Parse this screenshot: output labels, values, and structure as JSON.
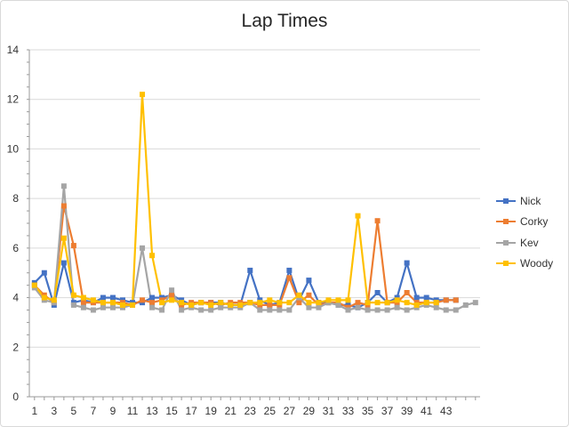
{
  "chart_data": {
    "type": "line",
    "title": "Lap Times",
    "xlabel": "",
    "ylabel": "",
    "ylim": [
      0,
      14
    ],
    "y_ticks": [
      0,
      2,
      4,
      6,
      8,
      10,
      12,
      14
    ],
    "x_range": [
      1,
      46
    ],
    "x_tick_labels": [
      1,
      3,
      5,
      7,
      9,
      11,
      13,
      15,
      17,
      19,
      21,
      23,
      25,
      27,
      29,
      31,
      33,
      35,
      37,
      39,
      41,
      43
    ],
    "grid": "horizontal",
    "legend_position": "right",
    "series": [
      {
        "name": "Nick",
        "color": "#4472C4",
        "x": [
          1,
          2,
          3,
          4,
          5,
          6,
          7,
          8,
          9,
          10,
          11,
          12,
          13,
          14,
          15,
          16,
          17,
          18,
          19,
          20,
          21,
          22,
          23,
          24,
          25,
          26,
          27,
          28,
          29,
          30,
          31,
          32,
          33,
          34,
          35,
          36,
          37,
          38,
          39,
          40,
          41,
          42,
          43,
          44
        ],
        "values": [
          4.6,
          5.0,
          3.7,
          5.4,
          3.8,
          3.9,
          3.8,
          4.0,
          4.0,
          3.9,
          3.8,
          3.8,
          4.0,
          4.0,
          4.1,
          3.9,
          3.7,
          3.8,
          3.8,
          3.8,
          3.7,
          3.7,
          5.1,
          3.9,
          3.7,
          3.8,
          5.1,
          3.9,
          4.7,
          3.8,
          3.8,
          3.7,
          3.7,
          3.6,
          3.8,
          4.2,
          3.8,
          4.0,
          5.4,
          4.0,
          4.0,
          3.9,
          3.9,
          3.9
        ]
      },
      {
        "name": "Corky",
        "color": "#ED7D31",
        "x": [
          1,
          2,
          3,
          4,
          5,
          6,
          7,
          8,
          9,
          10,
          11,
          12,
          13,
          14,
          15,
          16,
          17,
          18,
          19,
          20,
          21,
          22,
          23,
          24,
          25,
          26,
          27,
          28,
          29,
          30,
          31,
          32,
          33,
          34,
          35,
          36,
          37,
          38,
          39,
          40,
          41,
          42,
          43,
          44
        ],
        "values": [
          4.5,
          4.1,
          3.8,
          7.7,
          6.1,
          3.8,
          3.8,
          3.8,
          3.8,
          3.8,
          3.7,
          3.9,
          3.8,
          3.9,
          4.1,
          3.7,
          3.8,
          3.8,
          3.8,
          3.7,
          3.8,
          3.8,
          3.8,
          3.7,
          3.7,
          3.7,
          4.8,
          3.8,
          4.1,
          3.7,
          3.8,
          3.8,
          3.6,
          3.8,
          3.7,
          7.1,
          3.8,
          3.8,
          4.2,
          3.8,
          3.8,
          3.8,
          3.9,
          3.9
        ]
      },
      {
        "name": "Kev",
        "color": "#A5A5A5",
        "x": [
          1,
          2,
          3,
          4,
          5,
          6,
          7,
          8,
          9,
          10,
          11,
          12,
          13,
          14,
          15,
          16,
          17,
          18,
          19,
          20,
          21,
          22,
          23,
          24,
          25,
          26,
          27,
          28,
          29,
          30,
          31,
          32,
          33,
          34,
          35,
          36,
          37,
          38,
          39,
          40,
          41,
          42,
          43,
          44,
          45,
          46
        ],
        "values": [
          4.4,
          3.9,
          3.8,
          8.5,
          3.7,
          3.6,
          3.5,
          3.6,
          3.6,
          3.6,
          3.7,
          6.0,
          3.6,
          3.5,
          4.3,
          3.5,
          3.6,
          3.5,
          3.5,
          3.6,
          3.6,
          3.6,
          3.8,
          3.5,
          3.5,
          3.5,
          3.5,
          4.0,
          3.6,
          3.6,
          3.8,
          3.7,
          3.5,
          3.6,
          3.5,
          3.5,
          3.5,
          3.6,
          3.5,
          3.6,
          3.7,
          3.6,
          3.5,
          3.5,
          3.7,
          3.8
        ]
      },
      {
        "name": "Woody",
        "color": "#FFC000",
        "x": [
          1,
          2,
          3,
          4,
          5,
          6,
          7,
          8,
          9,
          10,
          11,
          12,
          13,
          14,
          15,
          16,
          17,
          18,
          19,
          20,
          21,
          22,
          23,
          24,
          25,
          26,
          27,
          28,
          29,
          30,
          31,
          32,
          33,
          34,
          35,
          36,
          37,
          38,
          39,
          40,
          41,
          42
        ],
        "values": [
          4.5,
          4.0,
          3.9,
          6.4,
          4.1,
          4.0,
          3.9,
          3.8,
          3.8,
          3.7,
          3.7,
          12.2,
          5.7,
          3.8,
          3.9,
          3.8,
          3.7,
          3.8,
          3.7,
          3.8,
          3.7,
          3.7,
          3.8,
          3.8,
          3.9,
          3.8,
          3.8,
          4.1,
          3.8,
          3.8,
          3.9,
          3.9,
          3.9,
          7.3,
          3.8,
          3.8,
          3.8,
          3.9,
          3.8,
          3.7,
          3.8,
          3.8
        ]
      }
    ]
  }
}
